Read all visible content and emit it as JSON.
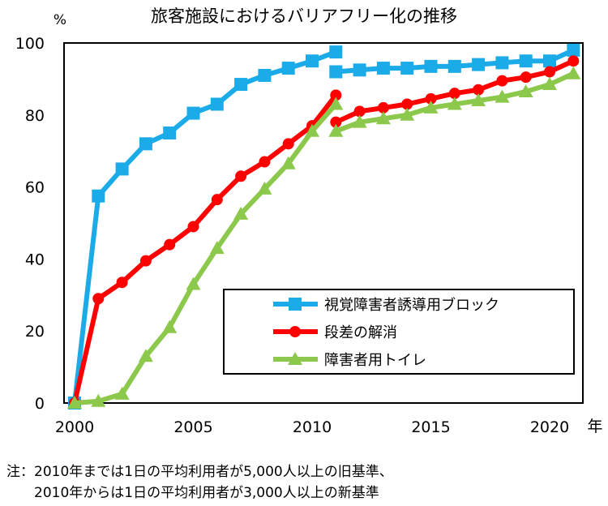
{
  "chart_data": {
    "type": "line",
    "title": "旅客施設におけるバリアフリー化の推移",
    "ylabel": "%",
    "xlabel": "年",
    "ylim": [
      0,
      100
    ],
    "xlim": [
      2000,
      2021
    ],
    "yticks": [
      "0",
      "20",
      "40",
      "60",
      "80",
      "100"
    ],
    "xticks": [
      "2000",
      "2005",
      "2010",
      "2015",
      "2020"
    ],
    "legend_position": "lower-right",
    "series": [
      {
        "name": "視覚障害者誘導用ブロック",
        "color": "#1aabe8",
        "marker": "square",
        "segments": [
          {
            "x": [
              2000,
              2001,
              2002,
              2003,
              2004,
              2005,
              2006,
              2007,
              2008,
              2009,
              2010,
              2011
            ],
            "y": [
              0,
              57.5,
              65,
              72,
              75,
              80.5,
              83,
              88.5,
              91,
              93,
              95,
              97.5
            ]
          },
          {
            "x": [
              2011,
              2012,
              2013,
              2014,
              2015,
              2016,
              2017,
              2018,
              2019,
              2020,
              2021
            ],
            "y": [
              92,
              92.5,
              93,
              93,
              93.5,
              93.5,
              94,
              94.5,
              95,
              95,
              98
            ]
          }
        ]
      },
      {
        "name": "段差の解消",
        "color": "#ff0000",
        "marker": "circle",
        "segments": [
          {
            "x": [
              2000,
              2001,
              2002,
              2003,
              2004,
              2005,
              2006,
              2007,
              2008,
              2009,
              2010,
              2011
            ],
            "y": [
              0,
              29,
              33.5,
              39.5,
              44,
              49,
              56.5,
              63,
              67,
              72,
              77,
              85.5
            ]
          },
          {
            "x": [
              2011,
              2012,
              2013,
              2014,
              2015,
              2016,
              2017,
              2018,
              2019,
              2020,
              2021
            ],
            "y": [
              78,
              81,
              82,
              83,
              84.5,
              86,
              87,
              89.5,
              90.5,
              92,
              95
            ]
          }
        ]
      },
      {
        "name": "障害者用トイレ",
        "color": "#8cc84b",
        "marker": "triangle",
        "segments": [
          {
            "x": [
              2000,
              2001,
              2002,
              2003,
              2004,
              2005,
              2006,
              2007,
              2008,
              2009,
              2010,
              2011
            ],
            "y": [
              0,
              0.5,
              2.5,
              13,
              21,
              33,
              43,
              52.5,
              59.5,
              66.5,
              75.5,
              83
            ]
          },
          {
            "x": [
              2011,
              2012,
              2013,
              2014,
              2015,
              2016,
              2017,
              2018,
              2019,
              2020,
              2021
            ],
            "y": [
              75.5,
              78,
              79,
              80,
              82,
              83,
              84,
              85,
              86.5,
              88.5,
              91.5
            ]
          }
        ]
      }
    ],
    "notes": [
      "注：2010年までは1日の平均利用者が5,000人以上の旧基準、",
      "　　2010年からは1日の平均利用者が3,000人以上の新基準"
    ]
  }
}
